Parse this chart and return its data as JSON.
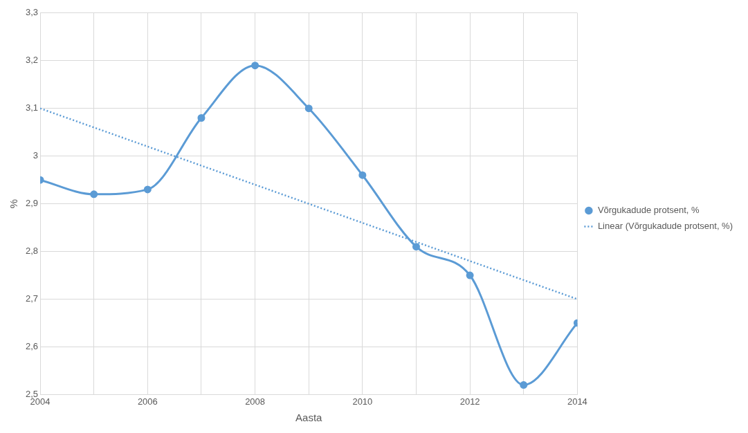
{
  "chart_data": {
    "type": "line",
    "xlabel": "Aasta",
    "ylabel": "%",
    "x": [
      2004,
      2005,
      2006,
      2007,
      2008,
      2009,
      2010,
      2011,
      2012,
      2013,
      2014
    ],
    "series": [
      {
        "name": "Võrgukadude protsent, %",
        "color": "#5b9bd5",
        "values": [
          2.95,
          2.92,
          2.93,
          3.08,
          3.19,
          3.1,
          2.96,
          2.81,
          2.75,
          2.52,
          2.65
        ],
        "marker": "circle",
        "line_style": "solid"
      },
      {
        "name": "Linear (Võrgukadude protsent, %)",
        "color": "#5b9bd5",
        "x": [
          2004,
          2014
        ],
        "values": [
          3.1,
          2.7
        ],
        "marker": "none",
        "line_style": "dotted"
      }
    ],
    "xlim": [
      2004,
      2014
    ],
    "xticks": [
      2004,
      {
        "value": 2005,
        "label": null
      },
      2006,
      {
        "value": 2007,
        "label": null
      },
      2008,
      {
        "value": 2009,
        "label": null
      },
      2010,
      {
        "value": 2011,
        "label": null
      },
      2012,
      {
        "value": 2013,
        "label": null
      },
      2014
    ],
    "ylim": [
      2.5,
      3.3
    ],
    "yticks": [
      {
        "value": 2.5,
        "label": "2,5"
      },
      {
        "value": 2.6,
        "label": "2,6"
      },
      {
        "value": 2.7,
        "label": "2,7"
      },
      {
        "value": 2.8,
        "label": "2,8"
      },
      {
        "value": 2.9,
        "label": "2,9"
      },
      3,
      {
        "value": 3.1,
        "label": "3,1"
      },
      {
        "value": 3.2,
        "label": "3,2"
      },
      {
        "value": 3.3,
        "label": "3,3"
      }
    ],
    "grid": true,
    "legend": "right"
  }
}
